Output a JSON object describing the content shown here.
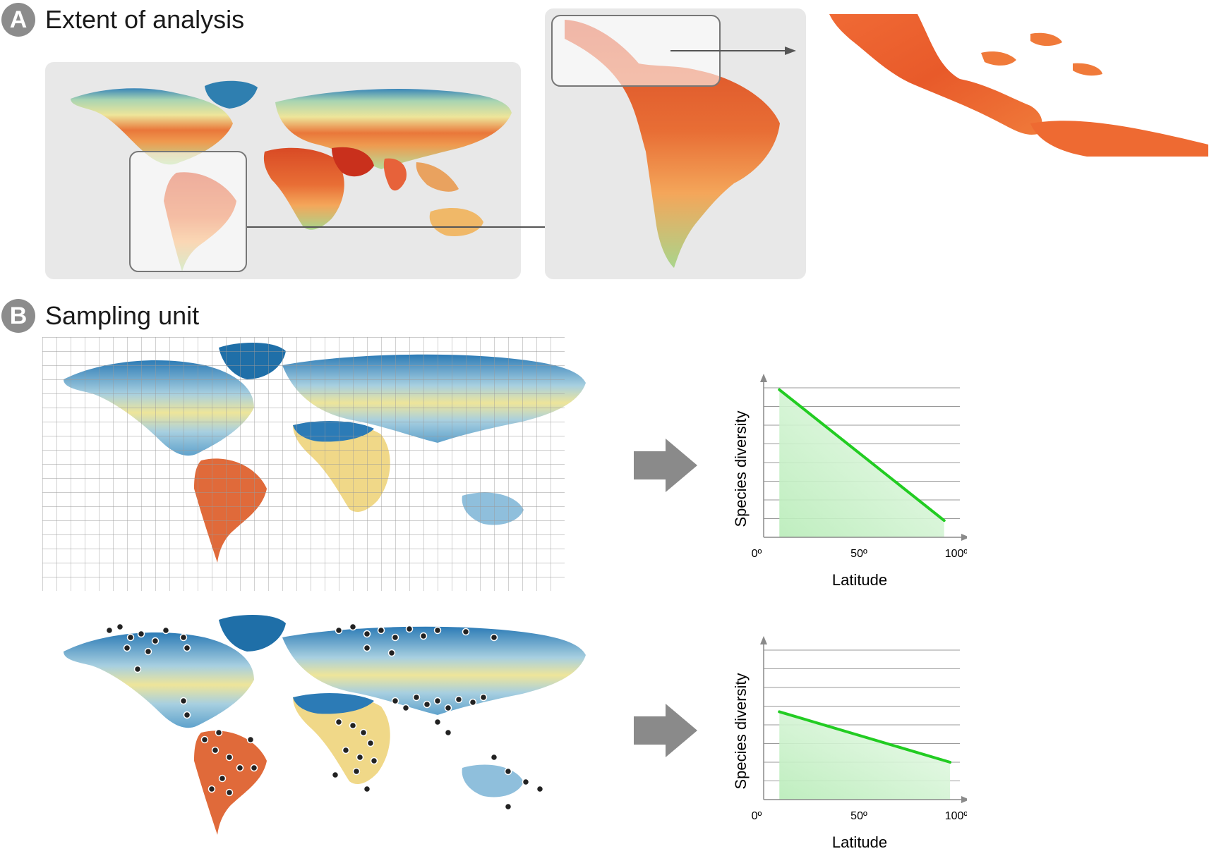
{
  "panel_a": {
    "badge": "A",
    "title": "Extent of analysis"
  },
  "panel_b": {
    "badge": "B",
    "title": "Sampling unit"
  },
  "colors": {
    "warm_high": "#d7301f",
    "warm_mid": "#f4a65a",
    "neutral": "#f1e9a0",
    "cool_mid": "#9cd0b0",
    "cool_high": "#2c7bb6",
    "trend_line": "#22cc22",
    "trend_fill": "#c9f2c9",
    "arrow_gray": "#8a8a8a",
    "panel_bg": "#e8e8e8"
  },
  "chart_data": [
    {
      "type": "line",
      "title": "",
      "xlabel": "Latitude",
      "ylabel": "Species diversity",
      "x_ticks": [
        "0º",
        "50º",
        "100º"
      ],
      "xlim": [
        0,
        100
      ],
      "ylim": [
        0,
        8
      ],
      "series": [
        {
          "x": [
            8,
            92
          ],
          "y": [
            7.9,
            0.9
          ]
        }
      ],
      "grid": true
    },
    {
      "type": "line",
      "title": "",
      "xlabel": "Latitude",
      "ylabel": "Species diversity",
      "x_ticks": [
        "0º",
        "50º",
        "100º"
      ],
      "xlim": [
        0,
        100
      ],
      "ylim": [
        0,
        8
      ],
      "series": [
        {
          "x": [
            8,
            95
          ],
          "y": [
            4.7,
            2.0
          ]
        }
      ],
      "grid": true
    }
  ]
}
